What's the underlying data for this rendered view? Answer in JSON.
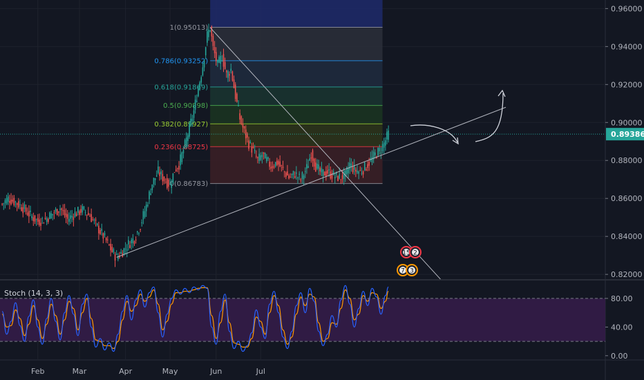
{
  "chart_data": {
    "type": "line",
    "title": "",
    "xlabel": "",
    "ylabel": "",
    "x_ticks": [
      "Feb",
      "Mar",
      "Apr",
      "May",
      "Jun",
      "Jul"
    ],
    "price_axis": {
      "ticks": [
        0.96,
        0.94,
        0.92,
        0.9,
        0.88,
        0.86,
        0.84,
        0.82
      ],
      "tick_labels": [
        "0.96000",
        "0.94000",
        "0.92000",
        "0.90000",
        "0.88000",
        "0.86000",
        "0.84000",
        "0.82000"
      ],
      "ylim": [
        0.8175,
        0.9645
      ]
    },
    "current_price": {
      "value": 0.89386,
      "label": "0.89386",
      "color": "#26a69a"
    },
    "price_series": {
      "name": "",
      "points": [
        [
          1,
          0.857
        ],
        [
          5,
          0.86
        ],
        [
          10,
          0.858
        ],
        [
          15,
          0.855
        ],
        [
          20,
          0.851
        ],
        [
          25,
          0.848
        ],
        [
          30,
          0.849
        ],
        [
          35,
          0.852
        ],
        [
          40,
          0.855
        ],
        [
          45,
          0.849
        ],
        [
          50,
          0.852
        ],
        [
          55,
          0.854
        ],
        [
          60,
          0.851
        ],
        [
          65,
          0.845
        ],
        [
          70,
          0.839
        ],
        [
          75,
          0.832
        ],
        [
          78,
          0.829
        ],
        [
          82,
          0.832
        ],
        [
          86,
          0.836
        ],
        [
          90,
          0.839
        ],
        [
          94,
          0.846
        ],
        [
          98,
          0.856
        ],
        [
          102,
          0.868
        ],
        [
          106,
          0.874
        ],
        [
          110,
          0.87
        ],
        [
          114,
          0.867
        ],
        [
          117,
          0.875
        ],
        [
          120,
          0.878
        ],
        [
          124,
          0.888
        ],
        [
          127,
          0.897
        ],
        [
          130,
          0.906
        ],
        [
          133,
          0.918
        ],
        [
          136,
          0.93
        ],
        [
          139,
          0.946
        ],
        [
          141,
          0.95
        ],
        [
          143,
          0.939
        ],
        [
          146,
          0.93
        ],
        [
          149,
          0.935
        ],
        [
          152,
          0.925
        ],
        [
          155,
          0.928
        ],
        [
          158,
          0.914
        ],
        [
          161,
          0.902
        ],
        [
          164,
          0.895
        ],
        [
          167,
          0.889
        ],
        [
          170,
          0.885
        ],
        [
          173,
          0.88
        ],
        [
          176,
          0.883
        ],
        [
          179,
          0.88
        ],
        [
          182,
          0.877
        ],
        [
          186,
          0.879
        ],
        [
          190,
          0.875
        ],
        [
          194,
          0.871
        ],
        [
          198,
          0.873
        ],
        [
          202,
          0.87
        ],
        [
          206,
          0.876
        ],
        [
          209,
          0.884
        ],
        [
          212,
          0.877
        ],
        [
          216,
          0.873
        ],
        [
          220,
          0.874
        ],
        [
          224,
          0.872
        ],
        [
          228,
          0.871
        ],
        [
          232,
          0.872
        ],
        [
          235,
          0.878
        ],
        [
          238,
          0.875
        ],
        [
          242,
          0.874
        ],
        [
          246,
          0.877
        ],
        [
          249,
          0.88
        ],
        [
          252,
          0.883
        ],
        [
          255,
          0.885
        ],
        [
          258,
          0.889
        ],
        [
          261,
          0.894
        ]
      ]
    },
    "fibonacci": {
      "high": 0.95013,
      "low": 0.86783,
      "levels": [
        {
          "ratio": "1",
          "price": 0.95013,
          "label": "1(0.95013)",
          "color": "#9598a1",
          "band_color": "#2a2e39"
        },
        {
          "ratio": "0.786",
          "price": 0.93252,
          "label": "0.786(0.93252)",
          "color": "#2196f3",
          "band_color": "#1f2a3d"
        },
        {
          "ratio": "0.618",
          "price": 0.91869,
          "label": "0.618(0.91869)",
          "color": "#26a69a",
          "band_color": "#1a3330"
        },
        {
          "ratio": "0.5",
          "price": 0.90898,
          "label": "0.5(0.90898)",
          "color": "#4caf50",
          "band_color": "#1b3321"
        },
        {
          "ratio": "0.382",
          "price": 0.89927,
          "label": "0.382(0.89927)",
          "color": "#9acd32",
          "band_color": "#2c331b"
        },
        {
          "ratio": "0.236",
          "price": 0.88725,
          "label": "0.236(0.88725)",
          "color": "#f23645",
          "band_color": "#3a1f26"
        },
        {
          "ratio": "0",
          "price": 0.86783,
          "label": "0(0.86783)",
          "color": "#9598a1",
          "band_color": "#3a1f26"
        }
      ],
      "projection_color": "#1e2a6b"
    },
    "annotations": [
      {
        "kind": "trendline",
        "from": [
          78,
          0.829
        ],
        "to": [
          340,
          0.908
        ],
        "color": "#b2b5be"
      },
      {
        "kind": "trendline",
        "from": [
          141,
          0.95
        ],
        "to": [
          296,
          0.8175
        ],
        "color": "#b2b5be"
      },
      {
        "kind": "arrow",
        "description": "curved arrow pointing down-right",
        "color": "#d1d4dc"
      },
      {
        "kind": "arrow",
        "description": "curved arrow pointing up",
        "color": "#d1d4dc"
      },
      {
        "kind": "event",
        "label": "15",
        "color": "#f23645"
      },
      {
        "kind": "event",
        "label": "2",
        "color": "#f23645"
      },
      {
        "kind": "event",
        "label": "7",
        "color": "#ff9800"
      },
      {
        "kind": "event",
        "label": "3",
        "color": "#ff9800"
      }
    ],
    "indicator": {
      "title": "Stoch (14, 3, 3)",
      "ticks": [
        80,
        40,
        0
      ],
      "tick_labels": [
        "80.00",
        "40.00",
        "0.00"
      ],
      "ylim": [
        -5,
        105
      ],
      "upper_band": 80,
      "lower_band": 20,
      "band_color": "#311b47",
      "k_color": "#2962ff",
      "d_color": "#ff9800",
      "k_series": [
        [
          1,
          62
        ],
        [
          4,
          30
        ],
        [
          7,
          48
        ],
        [
          10,
          74
        ],
        [
          13,
          42
        ],
        [
          16,
          20
        ],
        [
          19,
          55
        ],
        [
          22,
          78
        ],
        [
          25,
          40
        ],
        [
          28,
          16
        ],
        [
          31,
          52
        ],
        [
          34,
          80
        ],
        [
          37,
          48
        ],
        [
          40,
          22
        ],
        [
          43,
          60
        ],
        [
          46,
          84
        ],
        [
          49,
          58
        ],
        [
          52,
          28
        ],
        [
          55,
          72
        ],
        [
          58,
          86
        ],
        [
          61,
          40
        ],
        [
          64,
          12
        ],
        [
          67,
          24
        ],
        [
          70,
          8
        ],
        [
          73,
          18
        ],
        [
          76,
          6
        ],
        [
          79,
          30
        ],
        [
          82,
          62
        ],
        [
          85,
          84
        ],
        [
          88,
          50
        ],
        [
          91,
          78
        ],
        [
          94,
          92
        ],
        [
          97,
          68
        ],
        [
          100,
          88
        ],
        [
          103,
          96
        ],
        [
          106,
          60
        ],
        [
          109,
          26
        ],
        [
          112,
          58
        ],
        [
          115,
          80
        ],
        [
          118,
          92
        ],
        [
          121,
          86
        ],
        [
          124,
          94
        ],
        [
          127,
          88
        ],
        [
          130,
          96
        ],
        [
          133,
          92
        ],
        [
          136,
          98
        ],
        [
          139,
          94
        ],
        [
          142,
          40
        ],
        [
          145,
          16
        ],
        [
          148,
          62
        ],
        [
          151,
          86
        ],
        [
          154,
          34
        ],
        [
          157,
          10
        ],
        [
          160,
          20
        ],
        [
          163,
          6
        ],
        [
          166,
          14
        ],
        [
          169,
          32
        ],
        [
          172,
          64
        ],
        [
          175,
          40
        ],
        [
          178,
          24
        ],
        [
          181,
          72
        ],
        [
          184,
          90
        ],
        [
          187,
          60
        ],
        [
          190,
          26
        ],
        [
          193,
          10
        ],
        [
          196,
          34
        ],
        [
          199,
          70
        ],
        [
          202,
          88
        ],
        [
          205,
          60
        ],
        [
          208,
          94
        ],
        [
          211,
          76
        ],
        [
          214,
          34
        ],
        [
          217,
          14
        ],
        [
          220,
          30
        ],
        [
          223,
          56
        ],
        [
          226,
          40
        ],
        [
          229,
          78
        ],
        [
          232,
          98
        ],
        [
          235,
          72
        ],
        [
          238,
          40
        ],
        [
          241,
          66
        ],
        [
          244,
          90
        ],
        [
          247,
          70
        ],
        [
          250,
          94
        ],
        [
          253,
          82
        ],
        [
          256,
          58
        ],
        [
          259,
          84
        ],
        [
          261,
          96
        ]
      ],
      "d_series": [
        [
          1,
          58
        ],
        [
          4,
          40
        ],
        [
          7,
          42
        ],
        [
          10,
          64
        ],
        [
          13,
          52
        ],
        [
          16,
          28
        ],
        [
          19,
          44
        ],
        [
          22,
          70
        ],
        [
          25,
          50
        ],
        [
          28,
          24
        ],
        [
          31,
          44
        ],
        [
          34,
          72
        ],
        [
          37,
          56
        ],
        [
          40,
          30
        ],
        [
          43,
          50
        ],
        [
          46,
          76
        ],
        [
          49,
          66
        ],
        [
          52,
          36
        ],
        [
          55,
          60
        ],
        [
          58,
          80
        ],
        [
          61,
          52
        ],
        [
          64,
          22
        ],
        [
          67,
          20
        ],
        [
          70,
          14
        ],
        [
          73,
          14
        ],
        [
          76,
          10
        ],
        [
          79,
          20
        ],
        [
          82,
          50
        ],
        [
          85,
          76
        ],
        [
          88,
          62
        ],
        [
          91,
          70
        ],
        [
          94,
          86
        ],
        [
          97,
          76
        ],
        [
          100,
          82
        ],
        [
          103,
          92
        ],
        [
          106,
          72
        ],
        [
          109,
          36
        ],
        [
          112,
          48
        ],
        [
          115,
          72
        ],
        [
          118,
          88
        ],
        [
          121,
          88
        ],
        [
          124,
          90
        ],
        [
          127,
          90
        ],
        [
          130,
          92
        ],
        [
          133,
          94
        ],
        [
          136,
          95
        ],
        [
          139,
          95
        ],
        [
          142,
          56
        ],
        [
          145,
          24
        ],
        [
          148,
          46
        ],
        [
          151,
          78
        ],
        [
          154,
          46
        ],
        [
          157,
          18
        ],
        [
          160,
          16
        ],
        [
          163,
          12
        ],
        [
          166,
          12
        ],
        [
          169,
          24
        ],
        [
          172,
          54
        ],
        [
          175,
          48
        ],
        [
          178,
          30
        ],
        [
          181,
          60
        ],
        [
          184,
          84
        ],
        [
          187,
          70
        ],
        [
          190,
          36
        ],
        [
          193,
          16
        ],
        [
          196,
          26
        ],
        [
          199,
          58
        ],
        [
          202,
          82
        ],
        [
          205,
          70
        ],
        [
          208,
          86
        ],
        [
          211,
          82
        ],
        [
          214,
          46
        ],
        [
          217,
          20
        ],
        [
          220,
          24
        ],
        [
          223,
          46
        ],
        [
          226,
          44
        ],
        [
          229,
          66
        ],
        [
          232,
          92
        ],
        [
          235,
          80
        ],
        [
          238,
          50
        ],
        [
          241,
          58
        ],
        [
          244,
          84
        ],
        [
          247,
          76
        ],
        [
          250,
          88
        ],
        [
          253,
          86
        ],
        [
          256,
          66
        ],
        [
          259,
          76
        ],
        [
          261,
          90
        ]
      ]
    },
    "colors": {
      "background": "#131722",
      "up": "#26a69a",
      "down": "#ef5350",
      "grid": "#1e222d",
      "axis_text": "#b2b5be"
    }
  }
}
